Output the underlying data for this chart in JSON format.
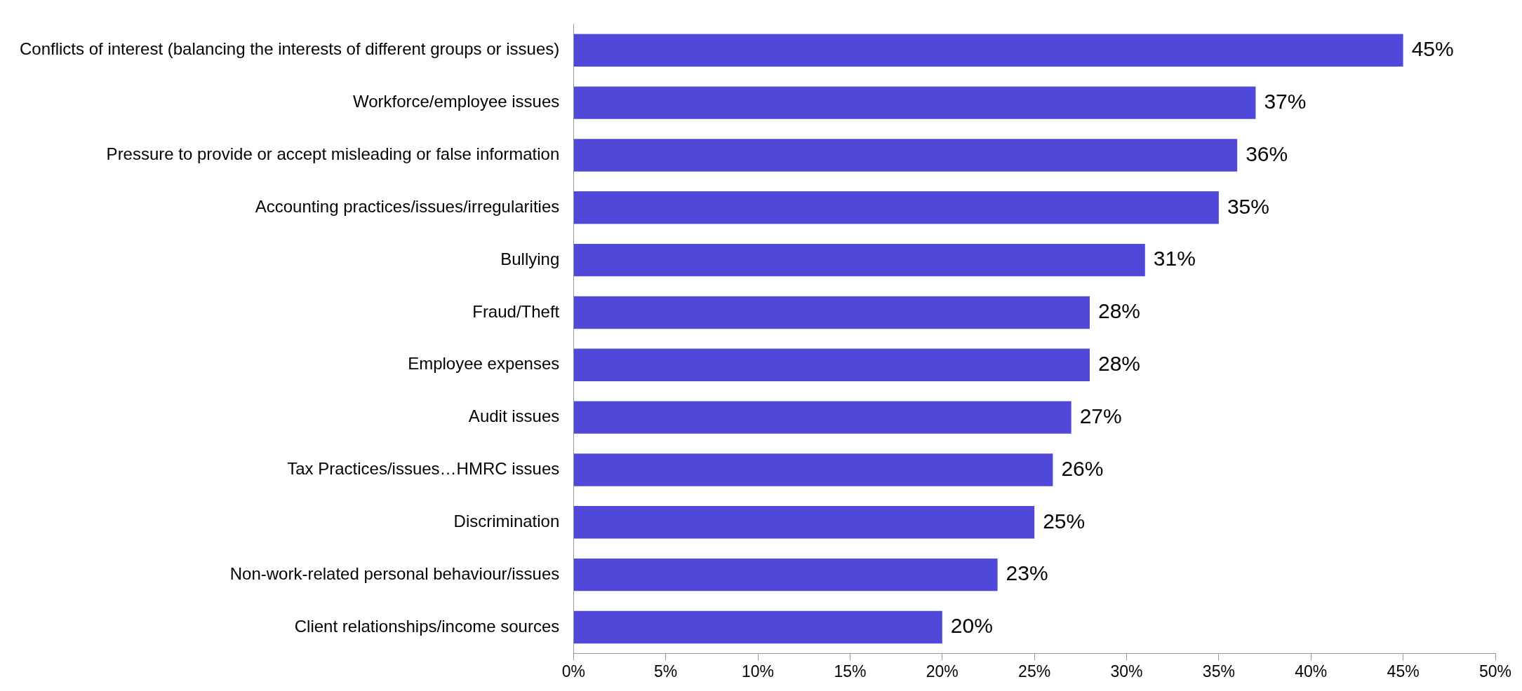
{
  "chart_data": {
    "type": "bar",
    "orientation": "horizontal",
    "categories": [
      "Conflicts of interest (balancing the interests of different groups or issues)",
      "Workforce/employee issues",
      "Pressure to provide or accept misleading or false information",
      "Accounting practices/issues/irregularities",
      "Bullying",
      "Fraud/Theft",
      "Employee expenses",
      "Audit issues",
      "Tax Practices/issues…HMRC issues",
      "Discrimination",
      "Non-work-related personal behaviour/issues",
      "Client relationships/income sources"
    ],
    "values": [
      45,
      37,
      36,
      35,
      31,
      28,
      28,
      27,
      26,
      25,
      23,
      20
    ],
    "color": "#4f48d8",
    "xlim": [
      0,
      50
    ],
    "xticks": [
      {
        "value": 0,
        "label": "0%"
      },
      {
        "value": 5,
        "label": "5%"
      },
      {
        "value": 10,
        "label": "10%"
      },
      {
        "value": 15,
        "label": "15%"
      },
      {
        "value": 20,
        "label": "20%"
      },
      {
        "value": 25,
        "label": "25%"
      },
      {
        "value": 30,
        "label": "30%"
      },
      {
        "value": 35,
        "label": "35%"
      },
      {
        "value": 40,
        "label": "40%"
      },
      {
        "value": 45,
        "label": "45%"
      },
      {
        "value": 50,
        "label": "50%"
      }
    ],
    "value_labels": [
      "45%",
      "37%",
      "36%",
      "35%",
      "31%",
      "28%",
      "28%",
      "27%",
      "26%",
      "25%",
      "23%",
      "20%"
    ],
    "grid": false,
    "legend": false
  }
}
